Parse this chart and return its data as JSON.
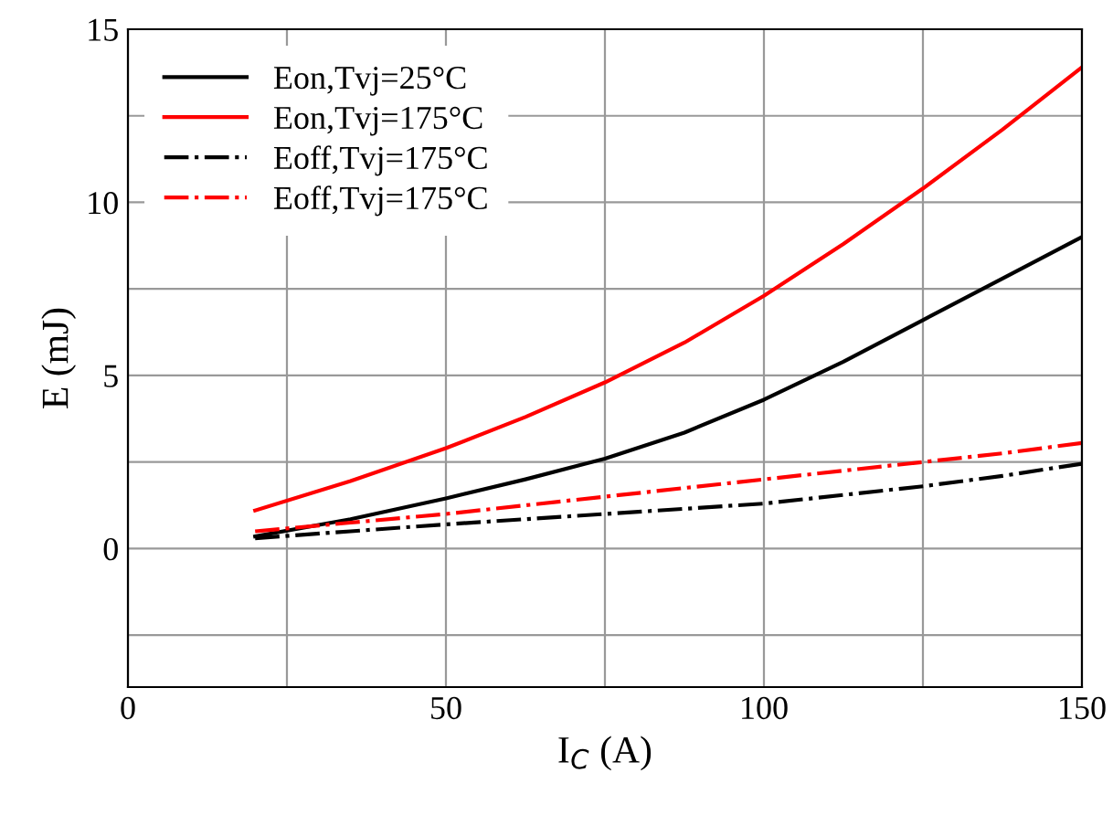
{
  "chart_data": {
    "type": "line",
    "xlabel": "I$_{C}$ (A)",
    "ylabel": "E (mJ)",
    "x": [
      20,
      35,
      50,
      62.5,
      75,
      87.5,
      100,
      112.5,
      125,
      137.5,
      150
    ],
    "series": [
      {
        "name": "Eon,Tvj=25°C",
        "color": "#000000",
        "line_style": "solid",
        "values": [
          0.35,
          0.85,
          1.45,
          2.0,
          2.6,
          3.35,
          4.3,
          5.4,
          6.6,
          7.8,
          9.0
        ]
      },
      {
        "name": "Eon,Tvj=175°C",
        "color": "#ff0000",
        "line_style": "solid",
        "values": [
          1.1,
          1.95,
          2.9,
          3.8,
          4.8,
          5.95,
          7.3,
          8.8,
          10.4,
          12.1,
          13.9
        ]
      },
      {
        "name": "Eoff,Tvj=175°C",
        "color": "#000000",
        "line_style": "dashdot",
        "values": [
          0.3,
          0.5,
          0.7,
          0.85,
          1.0,
          1.15,
          1.3,
          1.55,
          1.8,
          2.1,
          2.45
        ]
      },
      {
        "name": "Eoff,Tvj=175°C",
        "color": "#ff0000",
        "line_style": "dashdot",
        "values": [
          0.5,
          0.75,
          1.0,
          1.25,
          1.5,
          1.75,
          2.0,
          2.25,
          2.5,
          2.75,
          3.05
        ]
      }
    ],
    "xlim": [
      0,
      150
    ],
    "ylim": [
      -4,
      15
    ],
    "xticks": [
      0,
      {
        "value": 25,
        "label": null
      },
      50,
      {
        "value": 75,
        "label": null
      },
      100,
      {
        "value": 125,
        "label": null
      },
      150
    ],
    "yticks": [
      {
        "value": -2.5,
        "label": null
      },
      0,
      {
        "value": 2.5,
        "label": null
      },
      5,
      {
        "value": 7.5,
        "label": null
      },
      10,
      {
        "value": 12.5,
        "label": null
      },
      15
    ],
    "grid": true,
    "legend": "top left"
  }
}
